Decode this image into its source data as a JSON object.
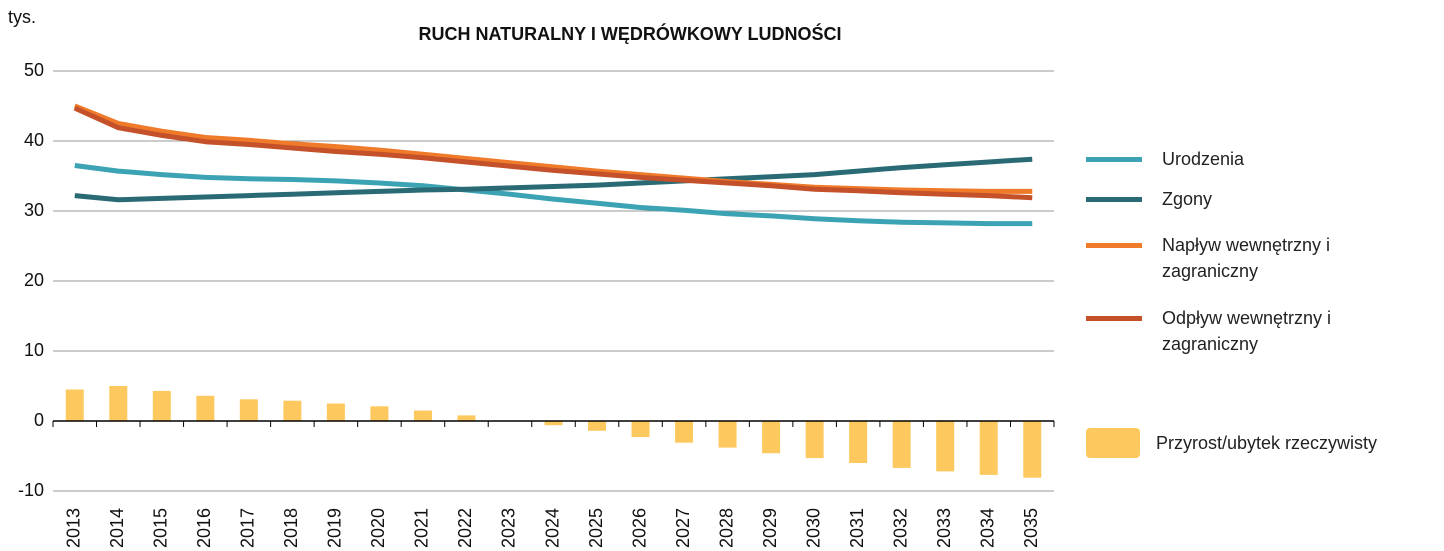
{
  "chart_data": {
    "type": "line",
    "title": "RUCH NATURALNY I WĘDRÓWKOWY LUDNOŚCI",
    "ylabel": "tys.",
    "categories": [
      "2013",
      "2014",
      "2015",
      "2016",
      "2017",
      "2018",
      "2019",
      "2020",
      "2021",
      "2022",
      "2023",
      "2024",
      "2025",
      "2026",
      "2027",
      "2028",
      "2029",
      "2030",
      "2031",
      "2032",
      "2033",
      "2034",
      "2035"
    ],
    "ylim": [
      -10,
      50
    ],
    "yticks": [
      -10,
      0,
      10,
      20,
      30,
      40,
      50
    ],
    "grid": true,
    "series": [
      {
        "name": "Urodzenia",
        "type": "line",
        "color": "#3ba3b4",
        "values": [
          36.5,
          35.7,
          35.2,
          34.8,
          34.6,
          34.5,
          34.3,
          34.0,
          33.6,
          33.0,
          32.4,
          31.7,
          31.1,
          30.5,
          30.1,
          29.6,
          29.3,
          28.9,
          28.6,
          28.4,
          28.3,
          28.2,
          28.2
        ]
      },
      {
        "name": "Zgony",
        "type": "line",
        "color": "#2a6a75",
        "values": [
          32.2,
          31.6,
          31.8,
          32.0,
          32.2,
          32.4,
          32.6,
          32.8,
          33.0,
          33.1,
          33.3,
          33.5,
          33.7,
          34.0,
          34.3,
          34.6,
          34.9,
          35.2,
          35.7,
          36.2,
          36.6,
          37.0,
          37.4
        ]
      },
      {
        "name": "Napływ wewnętrzny i zagraniczny",
        "type": "line",
        "color": "#ef7a2a",
        "values": [
          45.0,
          42.5,
          41.4,
          40.5,
          40.1,
          39.6,
          39.2,
          38.7,
          38.1,
          37.5,
          36.9,
          36.3,
          35.7,
          35.2,
          34.7,
          34.2,
          33.8,
          33.4,
          33.2,
          33.0,
          32.9,
          32.8,
          32.8
        ]
      },
      {
        "name": "Odpływ wewnętrzny i zagraniczny",
        "type": "line",
        "color": "#c4512a",
        "values": [
          44.7,
          41.9,
          40.8,
          39.9,
          39.5,
          39.0,
          38.5,
          38.1,
          37.6,
          37.0,
          36.4,
          35.8,
          35.3,
          34.8,
          34.4,
          34.0,
          33.6,
          33.1,
          32.9,
          32.6,
          32.4,
          32.2,
          31.9
        ]
      },
      {
        "name": "Przyrost/ubytek rzeczywisty",
        "type": "bar",
        "color": "#fdc95e",
        "values": [
          4.5,
          5.0,
          4.3,
          3.6,
          3.1,
          2.9,
          2.5,
          2.1,
          1.5,
          0.8,
          0,
          -0.6,
          -1.4,
          -2.3,
          -3.1,
          -3.8,
          -4.6,
          -5.3,
          -6.0,
          -6.7,
          -7.2,
          -7.7,
          -8.1
        ]
      }
    ]
  }
}
